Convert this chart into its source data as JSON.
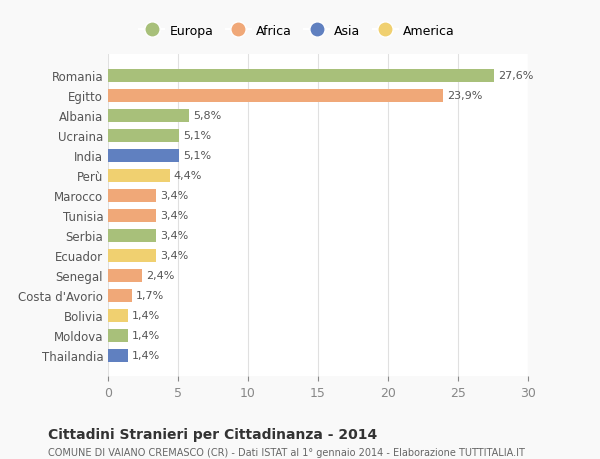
{
  "countries": [
    "Romania",
    "Egitto",
    "Albania",
    "Ucraina",
    "India",
    "Perù",
    "Marocco",
    "Tunisia",
    "Serbia",
    "Ecuador",
    "Senegal",
    "Costa d'Avorio",
    "Bolivia",
    "Moldova",
    "Thailandia"
  ],
  "values": [
    27.6,
    23.9,
    5.8,
    5.1,
    5.1,
    4.4,
    3.4,
    3.4,
    3.4,
    3.4,
    2.4,
    1.7,
    1.4,
    1.4,
    1.4
  ],
  "labels": [
    "27,6%",
    "23,9%",
    "5,8%",
    "5,1%",
    "5,1%",
    "4,4%",
    "3,4%",
    "3,4%",
    "3,4%",
    "3,4%",
    "2,4%",
    "1,7%",
    "1,4%",
    "1,4%",
    "1,4%"
  ],
  "continents": [
    "Europa",
    "Africa",
    "Europa",
    "Europa",
    "Asia",
    "America",
    "Africa",
    "Africa",
    "Europa",
    "America",
    "Africa",
    "Africa",
    "America",
    "Europa",
    "Asia"
  ],
  "colors": {
    "Europa": "#a8c07a",
    "Africa": "#f0a878",
    "Asia": "#6080c0",
    "America": "#f0d070"
  },
  "legend_order": [
    "Europa",
    "Africa",
    "Asia",
    "America"
  ],
  "title": "Cittadini Stranieri per Cittadinanza - 2014",
  "subtitle": "COMUNE DI VAIANO CREMASCO (CR) - Dati ISTAT al 1° gennaio 2014 - Elaborazione TUTTITALIA.IT",
  "xlim": [
    0,
    30
  ],
  "xticks": [
    0,
    5,
    10,
    15,
    20,
    25,
    30
  ],
  "background_color": "#f9f9f9",
  "bar_background": "#ffffff",
  "grid_color": "#e0e0e0"
}
